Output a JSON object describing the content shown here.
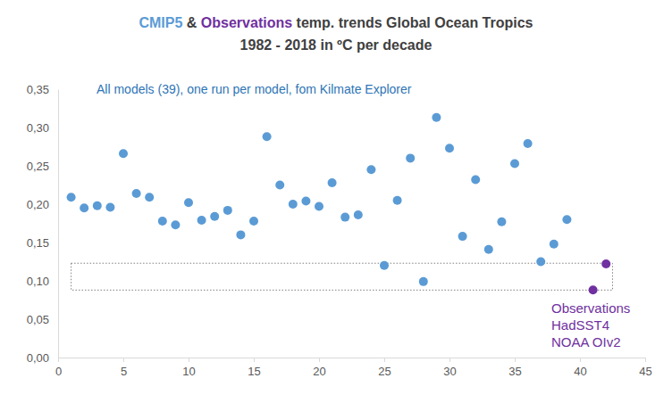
{
  "chart_data": {
    "type": "scatter",
    "title": [
      "CMIP5 & Observations temp. trends Global Ocean Tropics",
      "1982 - 2018 in ºC per decade"
    ],
    "annotations": [
      {
        "text": "All models (39), one run per model, fom Kilmate Explorer"
      },
      {
        "text": [
          "Observations",
          "HadSST4",
          "NOAA OIv2"
        ]
      }
    ],
    "series": [
      {
        "name": "CMIP5",
        "color": "#5b9bd5",
        "marker": "circle",
        "x": [
          1,
          2,
          3,
          4,
          5,
          6,
          7,
          8,
          9,
          10,
          11,
          12,
          13,
          14,
          15,
          16,
          17,
          18,
          19,
          20,
          21,
          22,
          23,
          24,
          25,
          26,
          27,
          28,
          29,
          30,
          31,
          32,
          33,
          34,
          35,
          36,
          37,
          38,
          39
        ],
        "values": [
          0.209,
          0.195,
          0.198,
          0.196,
          0.266,
          0.214,
          0.209,
          0.178,
          0.173,
          0.202,
          0.179,
          0.184,
          0.192,
          0.16,
          0.178,
          0.288,
          0.225,
          0.2,
          0.204,
          0.197,
          0.228,
          0.183,
          0.186,
          0.245,
          0.12,
          0.205,
          0.26,
          0.099,
          0.313,
          0.273,
          0.158,
          0.232,
          0.141,
          0.177,
          0.253,
          0.279,
          0.125,
          0.148,
          0.18
        ]
      },
      {
        "name": "Observations",
        "color": "#7030a0",
        "marker": "circle",
        "x": [
          41,
          42
        ],
        "values": [
          0.088,
          0.122
        ]
      }
    ],
    "highlight": {
      "x": [
        1,
        42.5
      ],
      "y": [
        0.088,
        0.123
      ],
      "line_style": "dotted"
    },
    "xlim": [
      0,
      45
    ],
    "xticks": [
      0,
      5,
      10,
      15,
      20,
      25,
      30,
      35,
      40,
      45
    ],
    "ylim": [
      0,
      0.35
    ],
    "yticks": [
      {
        "value": 0,
        "label": "0,00"
      },
      {
        "value": 0.05,
        "label": "0,05"
      },
      {
        "value": 0.1,
        "label": "0,10"
      },
      {
        "value": 0.15,
        "label": "0,15"
      },
      {
        "value": 0.2,
        "label": "0,20"
      },
      {
        "value": 0.25,
        "label": "0,25"
      },
      {
        "value": 0.3,
        "label": "0,30"
      },
      {
        "value": 0.35,
        "label": "0,35"
      }
    ],
    "grid": false
  }
}
